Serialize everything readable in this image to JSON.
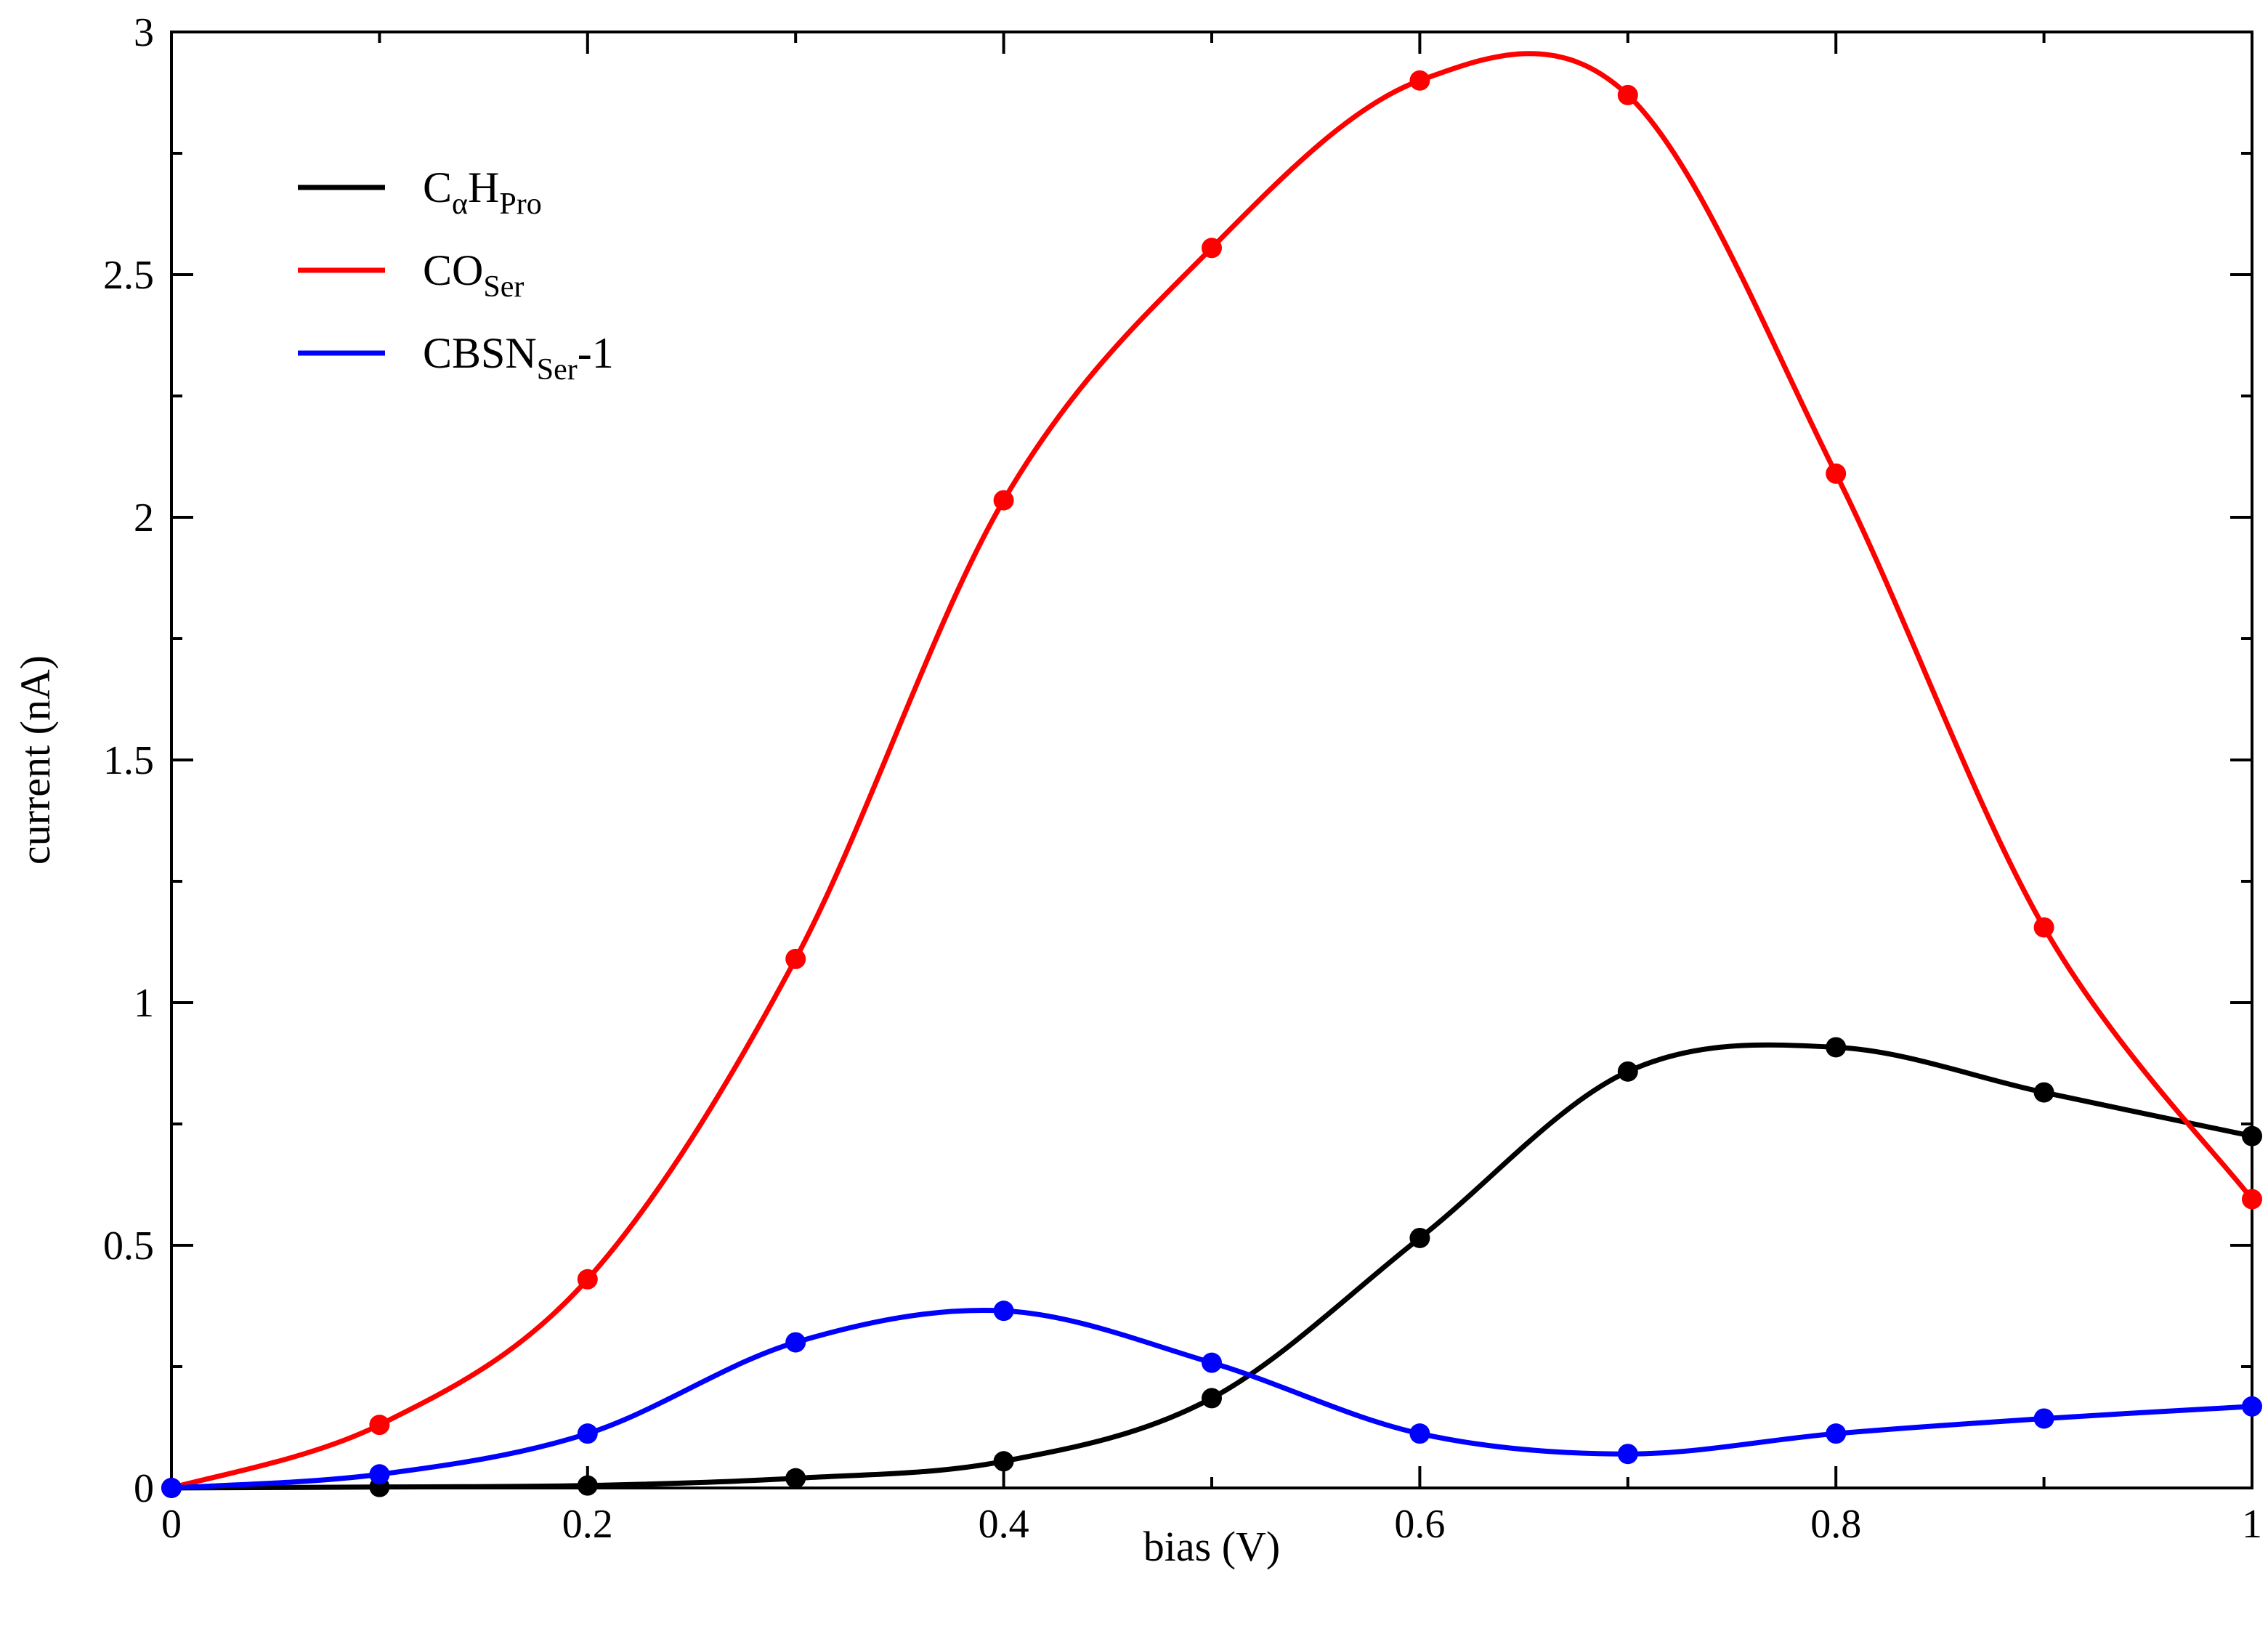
{
  "chart_data": {
    "type": "line",
    "title": "",
    "xlabel": "bias (V)",
    "ylabel": "current (nA)",
    "xlim": [
      0,
      1
    ],
    "ylim": [
      0,
      3
    ],
    "xticks": [
      {
        "value": 0,
        "label": "0"
      },
      {
        "value": 0.2,
        "label": "0.2"
      },
      {
        "value": 0.4,
        "label": "0.4"
      },
      {
        "value": 0.6,
        "label": "0.6"
      },
      {
        "value": 0.8,
        "label": "0.8"
      },
      {
        "value": 1,
        "label": "1"
      }
    ],
    "yticks": [
      {
        "value": 0,
        "label": "0"
      },
      {
        "value": 0.5,
        "label": "0.5"
      },
      {
        "value": 1,
        "label": "1"
      },
      {
        "value": 1.5,
        "label": "1.5"
      },
      {
        "value": 2,
        "label": "2"
      },
      {
        "value": 2.5,
        "label": "2.5"
      },
      {
        "value": 3,
        "label": "3"
      }
    ],
    "x_minor_step": 0.1,
    "y_minor_step": 0.25,
    "grid": false,
    "legend_position": "top-left",
    "x": [
      0,
      0.1,
      0.2,
      0.3,
      0.4,
      0.5,
      0.6,
      0.7,
      0.8,
      0.9,
      1.0
    ],
    "series": [
      {
        "key": "capro",
        "name_main": "C",
        "name_parts": [
          {
            "text": "C",
            "sub": false
          },
          {
            "text": "α",
            "sub": true
          },
          {
            "text": "H",
            "sub": false
          },
          {
            "text": "Pro",
            "sub": true
          }
        ],
        "color": "#000000",
        "values": [
          0,
          0.002,
          0.005,
          0.02,
          0.055,
          0.185,
          0.515,
          0.858,
          0.908,
          0.815,
          0.725
        ]
      },
      {
        "key": "coser",
        "name_parts": [
          {
            "text": "CO",
            "sub": false
          },
          {
            "text": "Ser",
            "sub": true
          }
        ],
        "color": "#ff0000",
        "values": [
          0,
          0.13,
          0.43,
          1.09,
          2.035,
          2.555,
          2.9,
          2.87,
          2.09,
          1.155,
          0.595
        ]
      },
      {
        "key": "cbsn",
        "name_parts": [
          {
            "text": "CBSN",
            "sub": false
          },
          {
            "text": "Ser",
            "sub": true
          },
          {
            "text": "-1",
            "sub": false
          }
        ],
        "color": "#0000ff",
        "values": [
          0,
          0.028,
          0.112,
          0.3,
          0.365,
          0.258,
          0.112,
          0.07,
          0.112,
          0.143,
          0.168
        ]
      }
    ]
  }
}
